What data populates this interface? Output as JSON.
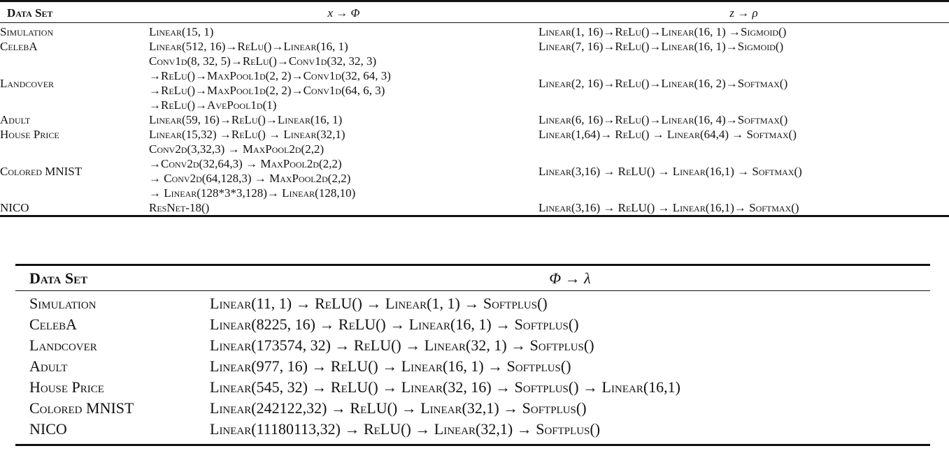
{
  "table1": {
    "headers": [
      "Data Set",
      "x → Φ",
      "z → ρ"
    ],
    "rows": [
      {
        "dataset": "Simulation",
        "phi": [
          "Linear(15, 1)"
        ],
        "rho": "Linear(1, 16)→ReLu()→Linear(16, 1) →Sigmoid()"
      },
      {
        "dataset": "CelebA",
        "phi": [
          "Linear(512, 16)→ReLu()→Linear(16, 1)"
        ],
        "rho": "Linear(7, 16)→ReLu()→Linear(16, 1)→Sigmoid()"
      },
      {
        "dataset": "Landcover",
        "phi": [
          "Conv1d(8, 32, 5)→ReLu()→Conv1d(32, 32, 3)",
          "→ReLu()→MaxPool1d(2, 2)→Conv1d(32, 64, 3)",
          "→ReLu()→MaxPool1d(2, 2)→Conv1d(64, 6, 3)",
          "→ReLu()→AvePool1d(1)"
        ],
        "rho": "Linear(2, 16)→ReLu()→Linear(16, 2)→Softmax()"
      },
      {
        "dataset": "Adult",
        "phi": [
          "Linear(59, 16)→ReLu()→Linear(16, 1)"
        ],
        "rho": "Linear(6, 16)→ReLu()→Linear(16, 4)→Softmax()"
      },
      {
        "dataset": "House Price",
        "phi": [
          "Linear(15,32) →ReLu() → Linear(32,1)"
        ],
        "rho": "Linear(1,64)→ ReLu() → Linear(64,4) → Softmax()"
      },
      {
        "dataset": "Colored MNIST",
        "phi": [
          "Conv2d(3,32,3) → MaxPool2d(2,2)",
          "→Conv2d(32,64,3) → MaxPool2d(2,2)",
          "→ Conv2d(64,128,3) → MaxPool2d(2,2)",
          "→ Linear(128*3*3,128)→ Linear(128,10)"
        ],
        "rho": "Linear(3,16) → ReLU() → Linear(16,1) → Softmax()"
      },
      {
        "dataset": "NICO",
        "phi": [
          "ResNet-18()"
        ],
        "rho": "Linear(3,16) → ReLU() → Linear(16,1)→ Softmax()"
      }
    ]
  },
  "table2": {
    "headers": [
      "Data Set",
      "Φ → λ"
    ],
    "rows": [
      {
        "dataset": "Simulation",
        "lambda": "Linear(11, 1) → ReLU() → Linear(1, 1) → Softplus()"
      },
      {
        "dataset": "CelebA",
        "lambda": "Linear(8225, 16) → ReLU() → Linear(16, 1) → Softplus()"
      },
      {
        "dataset": "Landcover",
        "lambda": "Linear(173574, 32) → ReLU() → Linear(32, 1) → Softplus()"
      },
      {
        "dataset": "Adult",
        "lambda": "Linear(977, 16) → ReLU() → Linear(16, 1) → Softplus()"
      },
      {
        "dataset": "House Price",
        "lambda": "Linear(545, 32) → ReLU() → Linear(32, 16) → Softplus() → Linear(16,1)"
      },
      {
        "dataset": "Colored MNIST",
        "lambda": "Linear(242122,32) → ReLU() → Linear(32,1) → Softplus()"
      },
      {
        "dataset": "NICO",
        "lambda": "Linear(11180113,32) → ReLU() → Linear(32,1) → Softplus()"
      }
    ]
  }
}
